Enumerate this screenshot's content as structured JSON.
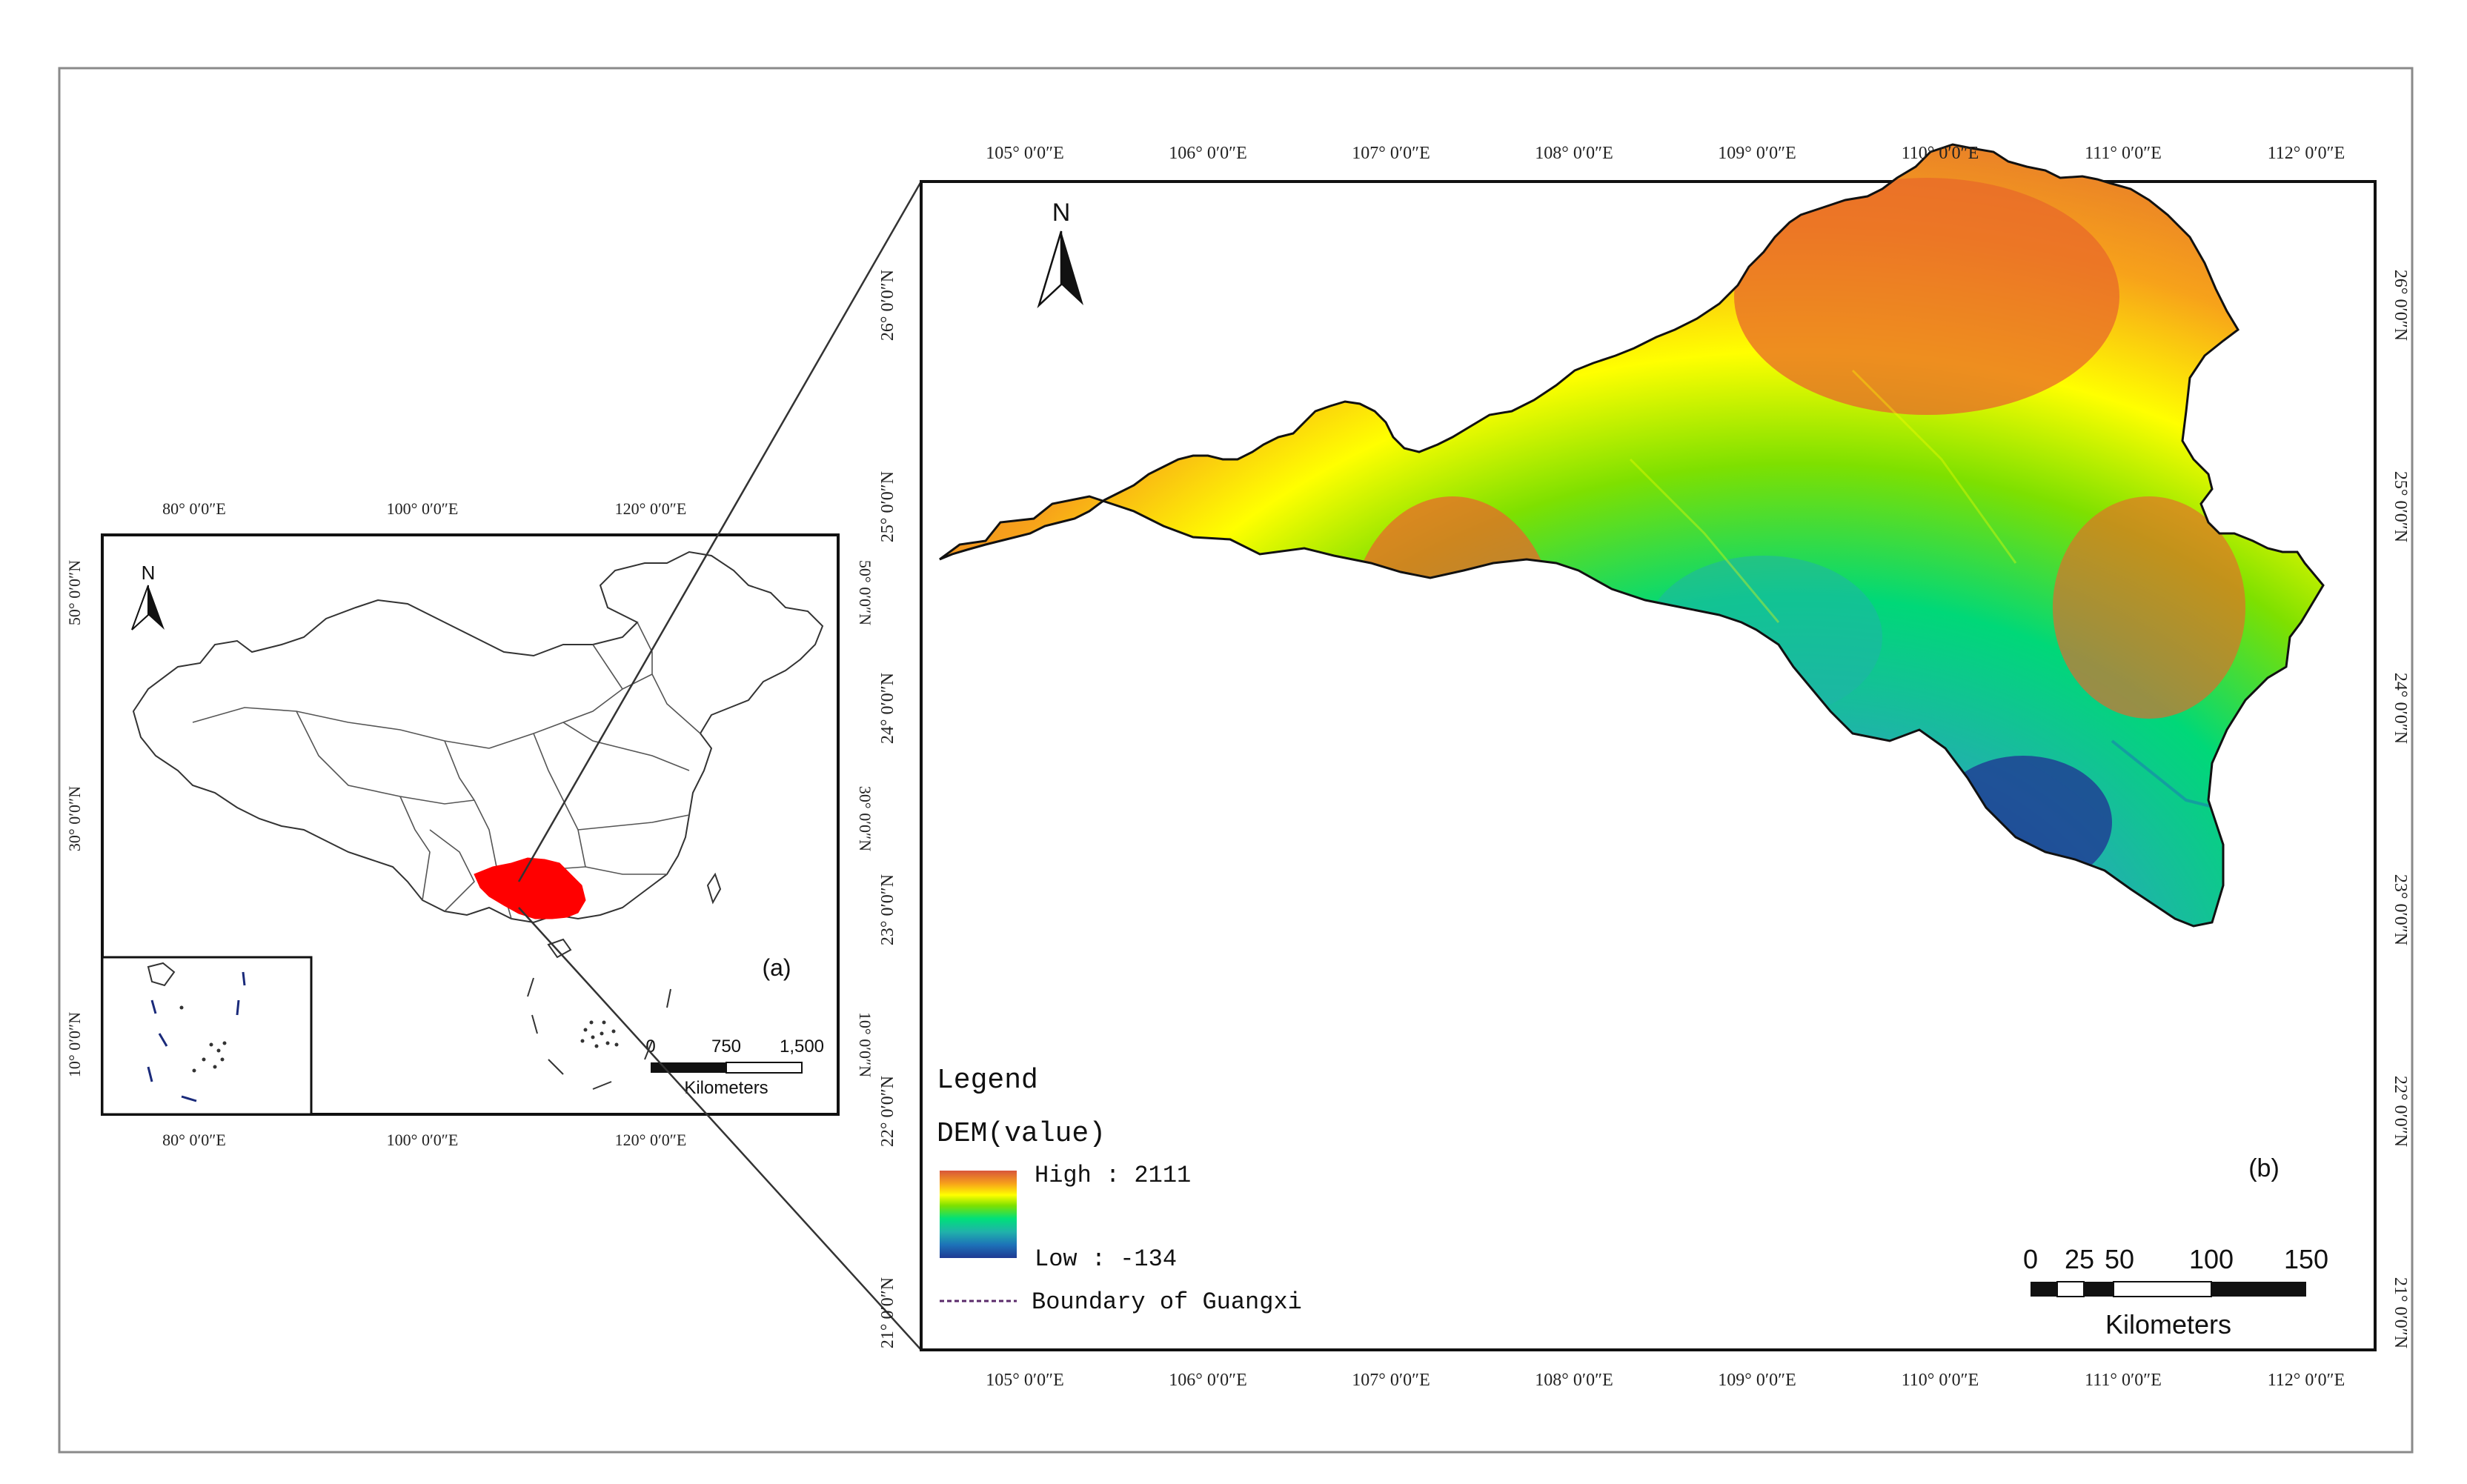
{
  "colors": {
    "frame": "#8a8a8a",
    "highlight": "#ff0000",
    "boundary_line": "#5a2a6a",
    "dem_ramp": [
      "#1f3a93",
      "#1d72b8",
      "#20b2aa",
      "#00e07a",
      "#7ee000",
      "#ffff00",
      "#f7a21a",
      "#e8682a",
      "#d8563a"
    ]
  },
  "panel_a": {
    "label": "(a)",
    "north_label": "N",
    "top_ticks": [
      "80° 0′0″E",
      "100° 0′0″E",
      "120° 0′0″E"
    ],
    "bottom_ticks": [
      "80° 0′0″E",
      "100° 0′0″E",
      "120° 0′0″E"
    ],
    "left_ticks": [
      "50° 0′0″N",
      "30° 0′0″N",
      "10° 0′0″N"
    ],
    "right_ticks": [
      "50° 0′0″N",
      "30° 0′0″N",
      "10° 0′0″N"
    ],
    "scale_numbers": [
      "0",
      "750",
      "1,500"
    ],
    "scale_unit": "Kilometers",
    "highlight_region": "Guangxi"
  },
  "panel_b": {
    "label": "(b)",
    "north_label": "N",
    "top_ticks": [
      "105° 0′0″E",
      "106° 0′0″E",
      "107° 0′0″E",
      "108° 0′0″E",
      "109° 0′0″E",
      "110° 0′0″E",
      "111° 0′0″E",
      "112° 0′0″E"
    ],
    "bottom_ticks": [
      "105° 0′0″E",
      "106° 0′0″E",
      "107° 0′0″E",
      "108° 0′0″E",
      "109° 0′0″E",
      "110° 0′0″E",
      "111° 0′0″E",
      "112° 0′0″E"
    ],
    "left_ticks": [
      "26° 0′0″N",
      "25° 0′0″N",
      "24° 0′0″N",
      "23° 0′0″N",
      "22° 0′0″N",
      "21° 0′0″N"
    ],
    "right_ticks": [
      "26° 0′0″N",
      "25° 0′0″N",
      "24° 0′0″N",
      "23° 0′0″N",
      "22° 0′0″N",
      "21° 0′0″N"
    ],
    "scale_numbers": [
      "0",
      "25",
      "50",
      "100",
      "150"
    ],
    "scale_unit": "Kilometers",
    "legend": {
      "title": "Legend",
      "subtitle": "DEM(value)",
      "high": "High : 2111",
      "low": "Low : -134",
      "boundary": "Boundary of Guangxi"
    }
  }
}
